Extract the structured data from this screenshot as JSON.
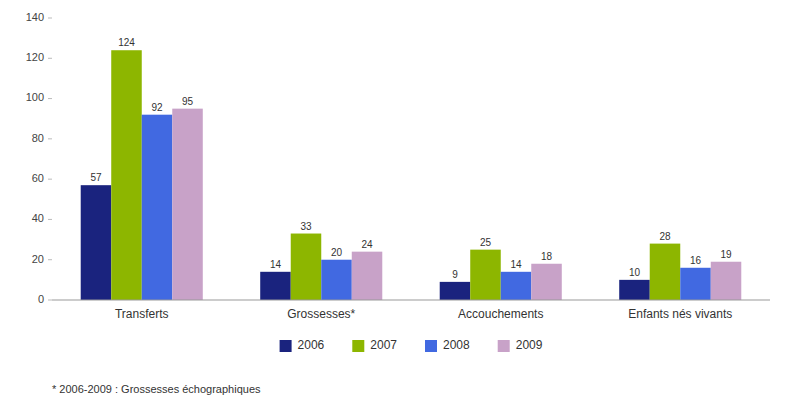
{
  "chart_data": {
    "type": "bar",
    "categories": [
      "Transferts",
      "Grossesses*",
      "Accouchements",
      "Enfants nés vivants"
    ],
    "series": [
      {
        "name": "2006",
        "color": "#1A237E",
        "values": [
          57,
          14,
          9,
          10
        ]
      },
      {
        "name": "2007",
        "color": "#8DB600",
        "values": [
          124,
          33,
          25,
          28
        ]
      },
      {
        "name": "2008",
        "color": "#4169E1",
        "values": [
          92,
          20,
          14,
          16
        ]
      },
      {
        "name": "2009",
        "color": "#C8A2C8",
        "values": [
          95,
          24,
          18,
          19
        ]
      }
    ],
    "ylim": [
      0,
      140
    ],
    "yticks": [
      0,
      20,
      40,
      60,
      80,
      100,
      120,
      140
    ],
    "grid": false,
    "legend": "bottom",
    "data_labels": true,
    "annotations": [
      "* 2006-2009 : Grossesses échographiques"
    ]
  }
}
